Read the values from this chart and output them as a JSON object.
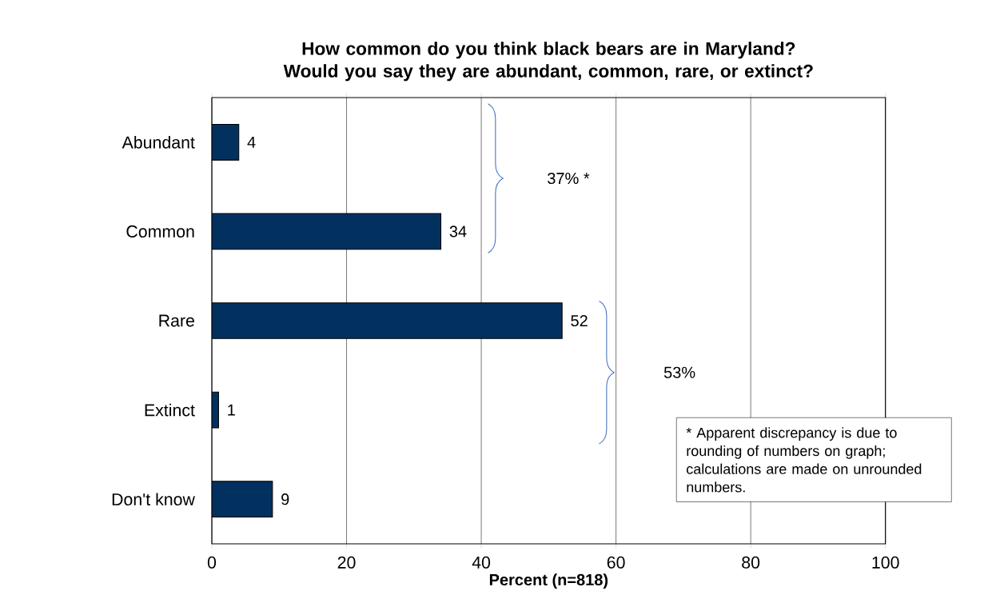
{
  "chart_data": {
    "type": "bar",
    "orientation": "horizontal",
    "title": "How common do you think black bears are in Maryland? Would you say they are abundant, common, rare, or extinct?",
    "categories": [
      "Abundant",
      "Common",
      "Rare",
      "Extinct",
      "Don't know"
    ],
    "values": [
      4,
      34,
      52,
      1,
      9
    ],
    "color": "#03315f",
    "xlim": [
      0,
      100
    ],
    "xticks": [
      0,
      20,
      40,
      60,
      80,
      100
    ],
    "xlabel": "Percent (n=818)",
    "grid": "x",
    "data_labels": true,
    "annotations": [
      "37% *",
      "53%",
      "* Apparent discrepancy is due to rounding of numbers on graph; calculations are made on unrounded numbers."
    ]
  }
}
